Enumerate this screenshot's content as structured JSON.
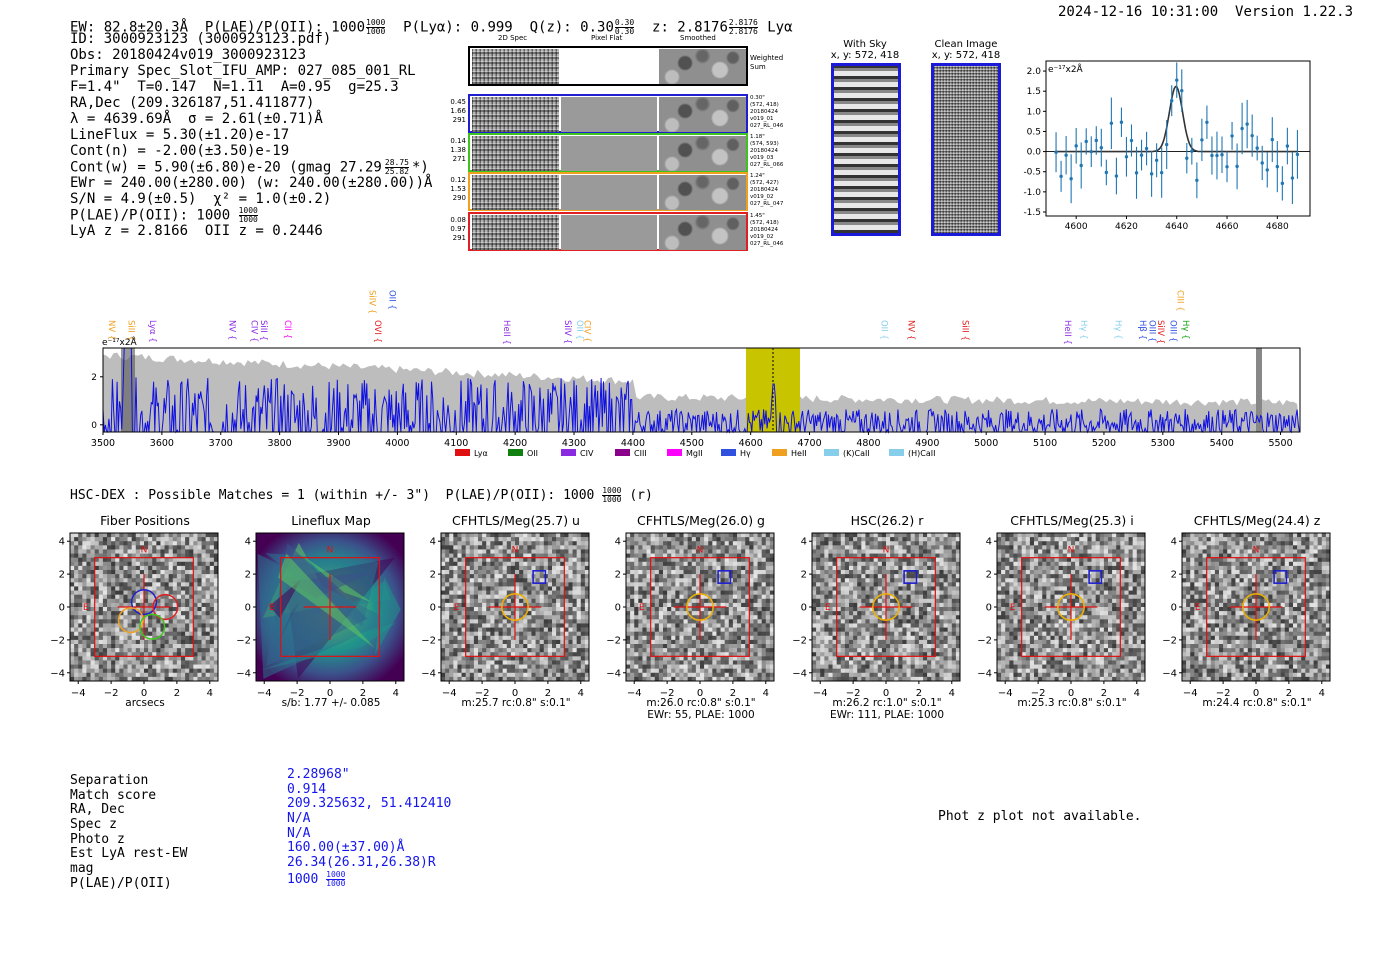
{
  "header": {
    "ew": "EW: 82.8±20.3Å",
    "plae_label": "P(LAE)/P(OII): 1000",
    "plae_hi": "1000",
    "plae_lo": "1000",
    "plya": "P(Lyα): 0.999",
    "qz_label": "Q(z): 0.30",
    "qz_hi": "0.30",
    "qz_lo": "0.30",
    "z_label": "z: 2.8176",
    "z_hi": "2.8176",
    "z_lo": "2.8176",
    "z_line": "Lyα",
    "datetime": "2024-12-16 10:31:00",
    "version": "Version 1.22.3"
  },
  "info": {
    "id": "ID: 3000923123 (3000923123.pdf)",
    "obs": "Obs: 20180424v019_3000923123",
    "primary": "Primary Spec_Slot_IFU_AMP: 027_085_001_RL",
    "fit": "F=1.4\"  T=0.147  N=1.11  A=0.95  g=25.3",
    "radec": "RA,Dec (209.326187,51.411877)",
    "lambda": "λ = 4639.69Å  σ = 2.61(±0.71)Å",
    "lineflux": "LineFlux = 5.30(±1.20)e-17",
    "contn": "Cont(n) = -2.00(±3.50)e-19",
    "contw": "Cont(w) = 5.90(±6.80)e-20 (gmag 27.29",
    "gmag_hi": "28.75",
    "gmag_lo": "25.82",
    "contw_end": "*)",
    "ewr": "EWr = 240.00(±280.00) (w: 240.00(±280.00))Å",
    "sn": "S/N = 4.9(±0.5)  χ² = 1.0(±0.2)",
    "plae": "P(LAE)/P(OII): 1000",
    "plae_hi": "1000",
    "plae_lo": "1000",
    "z": "LyA z = 2.8166  OII z = 0.2446"
  },
  "spec2d": {
    "col_headers": [
      "2D Spec",
      "Pixel Flat",
      "Smoothed"
    ],
    "weighted_label": "Weighted Sum",
    "rows": [
      {
        "vals": [
          "0.45",
          "1.66",
          "291"
        ],
        "color": "#1f1fd0",
        "info": [
          "0.30\"",
          "(572, 418)",
          "20180424",
          "v019_01",
          "027_RL_046"
        ]
      },
      {
        "vals": [
          "0.14",
          "1.38",
          "271"
        ],
        "color": "#3ec41e",
        "info": [
          "1.18\"",
          "(574, 593)",
          "20180424",
          "v019_03",
          "027_RL_066"
        ]
      },
      {
        "vals": [
          "0.12",
          "1.53",
          "290"
        ],
        "color": "#f0a020",
        "info": [
          "1.24\"",
          "(572, 427)",
          "20180424",
          "v019_02",
          "027_RL_047"
        ]
      },
      {
        "vals": [
          "0.08",
          "0.97",
          "291"
        ],
        "color": "#e02020",
        "info": [
          "1.45\"",
          "(572, 418)",
          "20180424",
          "v019_02",
          "027_RL_046"
        ]
      }
    ]
  },
  "sky": {
    "with_sky_title": "With Sky",
    "with_sky_xy": "x, y: 572, 418",
    "clean_title": "Clean Image",
    "clean_xy": "x, y: 572, 418"
  },
  "zoom_plot": {
    "unit": "e⁻¹⁷x2Å",
    "xticks": [
      "4600",
      "4620",
      "4640",
      "4660",
      "4680"
    ],
    "yticks": [
      "2.0",
      "1.5",
      "1.0",
      "0.5",
      "0.0",
      "-0.5",
      "-1.0",
      "-1.5"
    ]
  },
  "full_spectrum": {
    "unit": "e⁻¹⁷x2Å",
    "xticks": [
      "3500",
      "3600",
      "3700",
      "3800",
      "3900",
      "4000",
      "4100",
      "4200",
      "4300",
      "4400",
      "4500",
      "4600",
      "4700",
      "4800",
      "4900",
      "5000",
      "5100",
      "5200",
      "5300",
      "5400",
      "5500"
    ],
    "yticks": [
      "2",
      "0"
    ],
    "lines": [
      {
        "name": "NV",
        "color": "#f0a020"
      },
      {
        "name": "SiII",
        "color": "#f0a020"
      },
      {
        "name": "Lyα",
        "color": "#8a2be2"
      },
      {
        "name": "NV",
        "color": "#8a2be2"
      },
      {
        "name": "CIV",
        "color": "#8a2be2"
      },
      {
        "name": "SiII",
        "color": "#8a2be2"
      },
      {
        "name": "CII",
        "color": "#ff00ff"
      },
      {
        "name": "SiIV",
        "color": "#f0a020"
      },
      {
        "name": "OVI",
        "color": "#e02020"
      },
      {
        "name": "OII",
        "color": "#3050e0"
      },
      {
        "name": "HeII",
        "color": "#8a2be2"
      },
      {
        "name": "SiIV",
        "color": "#8a2be2"
      },
      {
        "name": "OII",
        "color": "#87ceeb"
      },
      {
        "name": "CIV",
        "color": "#f0a020"
      },
      {
        "name": "OII",
        "color": "#87ceeb"
      },
      {
        "name": "NV",
        "color": "#e02020"
      },
      {
        "name": "SiII",
        "color": "#e02020"
      },
      {
        "name": "HeII",
        "color": "#8a2be2"
      },
      {
        "name": "Hγ",
        "color": "#87ceeb"
      },
      {
        "name": "Hγ",
        "color": "#87ceeb"
      },
      {
        "name": "Hβ",
        "color": "#3050e0"
      },
      {
        "name": "OIII",
        "color": "#3050e0"
      },
      {
        "name": "SiIV",
        "color": "#e02020"
      },
      {
        "name": "OIII",
        "color": "#3050e0"
      },
      {
        "name": "CIII",
        "color": "#f0a020"
      },
      {
        "name": "Hγ",
        "color": "#10a010"
      }
    ],
    "legend": [
      {
        "name": "Lyα",
        "color": "#e01010"
      },
      {
        "name": "OII",
        "color": "#108010"
      },
      {
        "name": "CIV",
        "color": "#8a2be2"
      },
      {
        "name": "CIII",
        "color": "#8b008b"
      },
      {
        "name": "MgII",
        "color": "#ff00ff"
      },
      {
        "name": "Hγ",
        "color": "#3050e0"
      },
      {
        "name": "HeII",
        "color": "#f0a020"
      },
      {
        "name": "(K)CaII",
        "color": "#87ceeb"
      },
      {
        "name": "(H)CaII",
        "color": "#87ceeb"
      }
    ]
  },
  "match": {
    "header": "HSC-DEX : Possible Matches = 1 (within +/- 3\")  P(LAE)/P(OII): 1000",
    "hi": "1000",
    "lo": "1000",
    "tail": "(r)"
  },
  "cutouts": [
    {
      "title": "Fiber Positions",
      "cap1": "arcsecs",
      "cap2": ""
    },
    {
      "title": "Lineflux Map",
      "cap1": "s/b: 1.77 +/- 0.085",
      "cap2": ""
    },
    {
      "title": "CFHTLS/Meg(25.7) u",
      "cap1": "m:25.7 rc:0.8\"  s:0.1\"",
      "cap2": ""
    },
    {
      "title": "CFHTLS/Meg(26.0) g",
      "cap1": "m:26.0 rc:0.8\"  s:0.1\"",
      "cap2": "EWr: 55, PLAE: 1000"
    },
    {
      "title": "HSC(26.2) r",
      "cap1": "m:26.2 rc:1.0\"  s:0.1\"",
      "cap2": "EWr: 111, PLAE: 1000"
    },
    {
      "title": "CFHTLS/Meg(25.3) i",
      "cap1": "m:25.3 rc:0.8\"  s:0.1\"",
      "cap2": ""
    },
    {
      "title": "CFHTLS/Meg(24.4) z",
      "cap1": "m:24.4 rc:0.8\"  s:0.1\"",
      "cap2": ""
    }
  ],
  "cutout_axis": {
    "ticks": [
      "4",
      "2",
      "0",
      "−2",
      "−4"
    ],
    "xticks": [
      "−4",
      "−2",
      "0",
      "2",
      "4"
    ],
    "n_label": "N",
    "e_label": "E"
  },
  "summary": {
    "labels": [
      "Separation",
      "Match score",
      "RA, Dec",
      "Spec z",
      "Photo z",
      "Est LyA rest-EW",
      "mag",
      "P(LAE)/P(OII)"
    ],
    "values": [
      "2.28968\"",
      "0.914",
      "209.325632, 51.412410",
      "N/A",
      "N/A",
      "160.00(±37.00)Å",
      "26.34(26.31,26.38)R",
      "1000"
    ],
    "plae_hi": "1000",
    "plae_lo": "1000"
  },
  "phot_z_note": "Phot z plot not available.",
  "colors": {
    "blue_text": "#1515ee",
    "spectrum": "#1010e0",
    "sky": "#bdbdbd",
    "highlight": "#c8c400",
    "red_box": "#e01010"
  }
}
